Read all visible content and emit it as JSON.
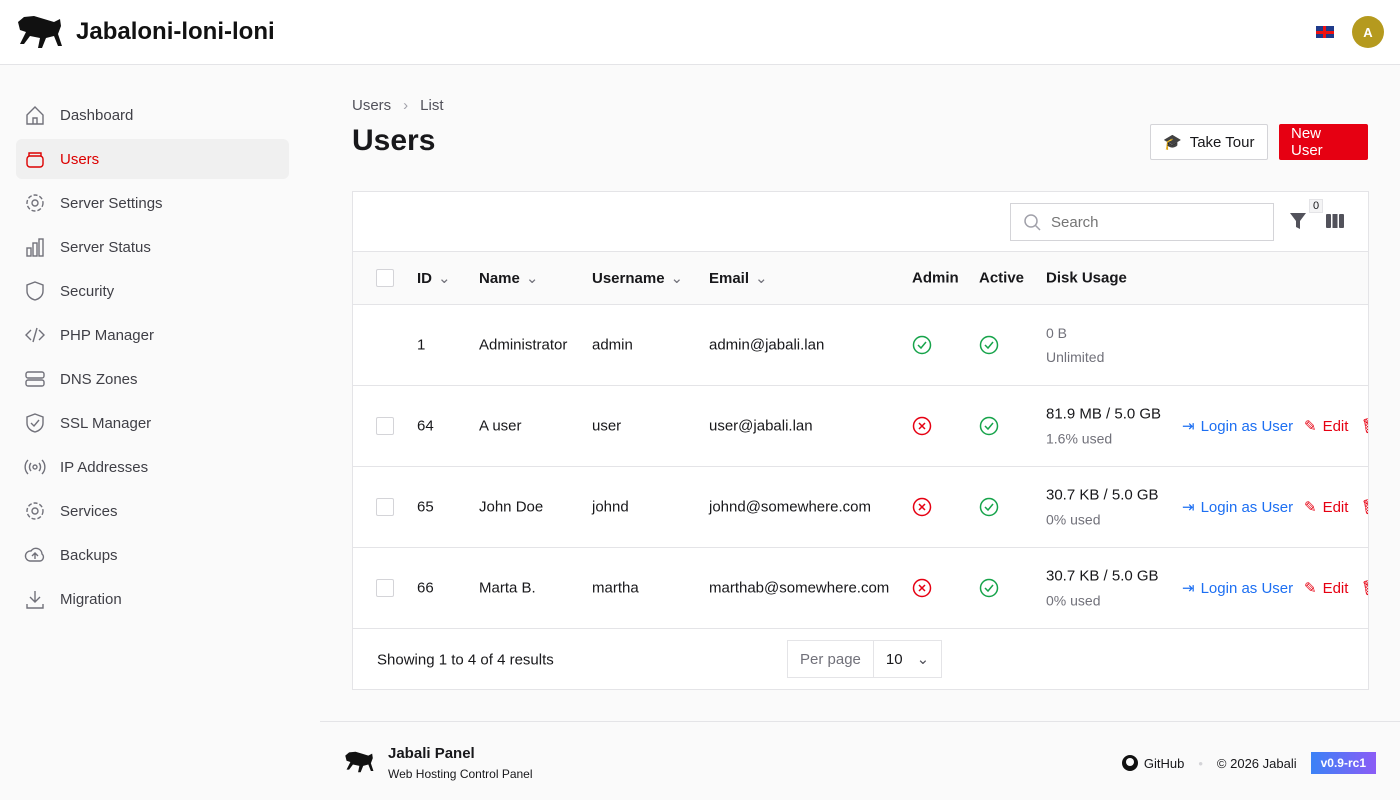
{
  "app": {
    "title": "Jabaloni-loni-loni",
    "avatar_initial": "A",
    "language": "en-GB"
  },
  "sidebar": {
    "items": [
      {
        "label": "Dashboard",
        "icon": "home-icon"
      },
      {
        "label": "Users",
        "icon": "users-icon",
        "active": true
      },
      {
        "label": "Server Settings",
        "icon": "gear-icon"
      },
      {
        "label": "Server Status",
        "icon": "bar-chart-icon"
      },
      {
        "label": "Security",
        "icon": "shield-icon"
      },
      {
        "label": "PHP Manager",
        "icon": "code-icon"
      },
      {
        "label": "DNS Zones",
        "icon": "server-icon"
      },
      {
        "label": "SSL Manager",
        "icon": "shield-check-icon"
      },
      {
        "label": "IP Addresses",
        "icon": "signal-icon"
      },
      {
        "label": "Services",
        "icon": "gear-icon"
      },
      {
        "label": "Backups",
        "icon": "cloud-upload-icon"
      },
      {
        "label": "Migration",
        "icon": "download-icon"
      }
    ]
  },
  "breadcrumb": [
    "Users",
    "List"
  ],
  "page": {
    "title": "Users",
    "take_tour": "Take Tour",
    "new_user": "New User"
  },
  "table": {
    "search_placeholder": "Search",
    "filter_count": "0",
    "columns": [
      "ID",
      "Name",
      "Username",
      "Email",
      "Admin",
      "Active",
      "Disk Usage"
    ],
    "rows": [
      {
        "id": "1",
        "name": "Administrator",
        "username": "admin",
        "email": "admin@jabali.lan",
        "admin": true,
        "active": true,
        "disk": "0 B",
        "disk_sub": "Unlimited",
        "actions": false
      },
      {
        "id": "64",
        "name": "A user",
        "username": "user",
        "email": "user@jabali.lan",
        "admin": false,
        "active": true,
        "disk": "81.9 MB / 5.0 GB",
        "disk_sub": "1.6% used",
        "actions": true
      },
      {
        "id": "65",
        "name": "John Doe",
        "username": "johnd",
        "email": "johnd@somewhere.com",
        "admin": false,
        "active": true,
        "disk": "30.7 KB / 5.0 GB",
        "disk_sub": "0% used",
        "actions": true
      },
      {
        "id": "66",
        "name": "Marta B.",
        "username": "martha",
        "email": "marthab@somewhere.com",
        "admin": false,
        "active": true,
        "disk": "30.7 KB / 5.0 GB",
        "disk_sub": "0% used",
        "actions": true
      }
    ],
    "login_as": "Login as User",
    "edit": "Edit",
    "showing": "Showing 1 to 4 of 4 results",
    "per_page_label": "Per page",
    "per_page": "10"
  },
  "footer": {
    "name": "Jabali Panel",
    "tagline": "Web Hosting Control Panel",
    "github": "GitHub",
    "copyright": "© 2026 Jabali",
    "version": "v0.9-rc1"
  },
  "colors": {
    "accent": "#e60012",
    "link": "#1d6ff2",
    "success": "#16a34a"
  }
}
